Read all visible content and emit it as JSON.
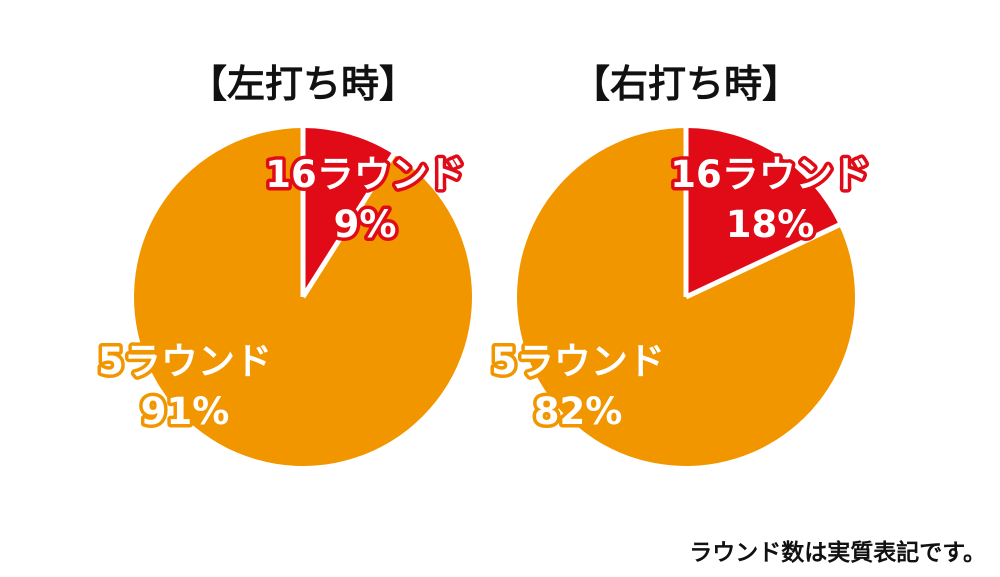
{
  "colors": {
    "sixteen_round": "#e10b17",
    "five_round": "#f29600",
    "separator": "#ffffff",
    "title_text": "#111111"
  },
  "chart_data": [
    {
      "type": "pie",
      "title": "【左打ち時】",
      "slices": [
        {
          "line1": "16ラウンド",
          "line2": "9%",
          "value": 9,
          "color": "#e10b17"
        },
        {
          "line1": "5ラウンド",
          "line2": "91%",
          "value": 91,
          "color": "#f29600"
        }
      ]
    },
    {
      "type": "pie",
      "title": "【右打ち時】",
      "slices": [
        {
          "line1": "16ラウンド",
          "line2": "18%",
          "value": 18,
          "color": "#e10b17"
        },
        {
          "line1": "5ラウンド",
          "line2": "82%",
          "value": 82,
          "color": "#f29600"
        }
      ]
    }
  ],
  "footnote": "ラウンド数は実質表記です。"
}
